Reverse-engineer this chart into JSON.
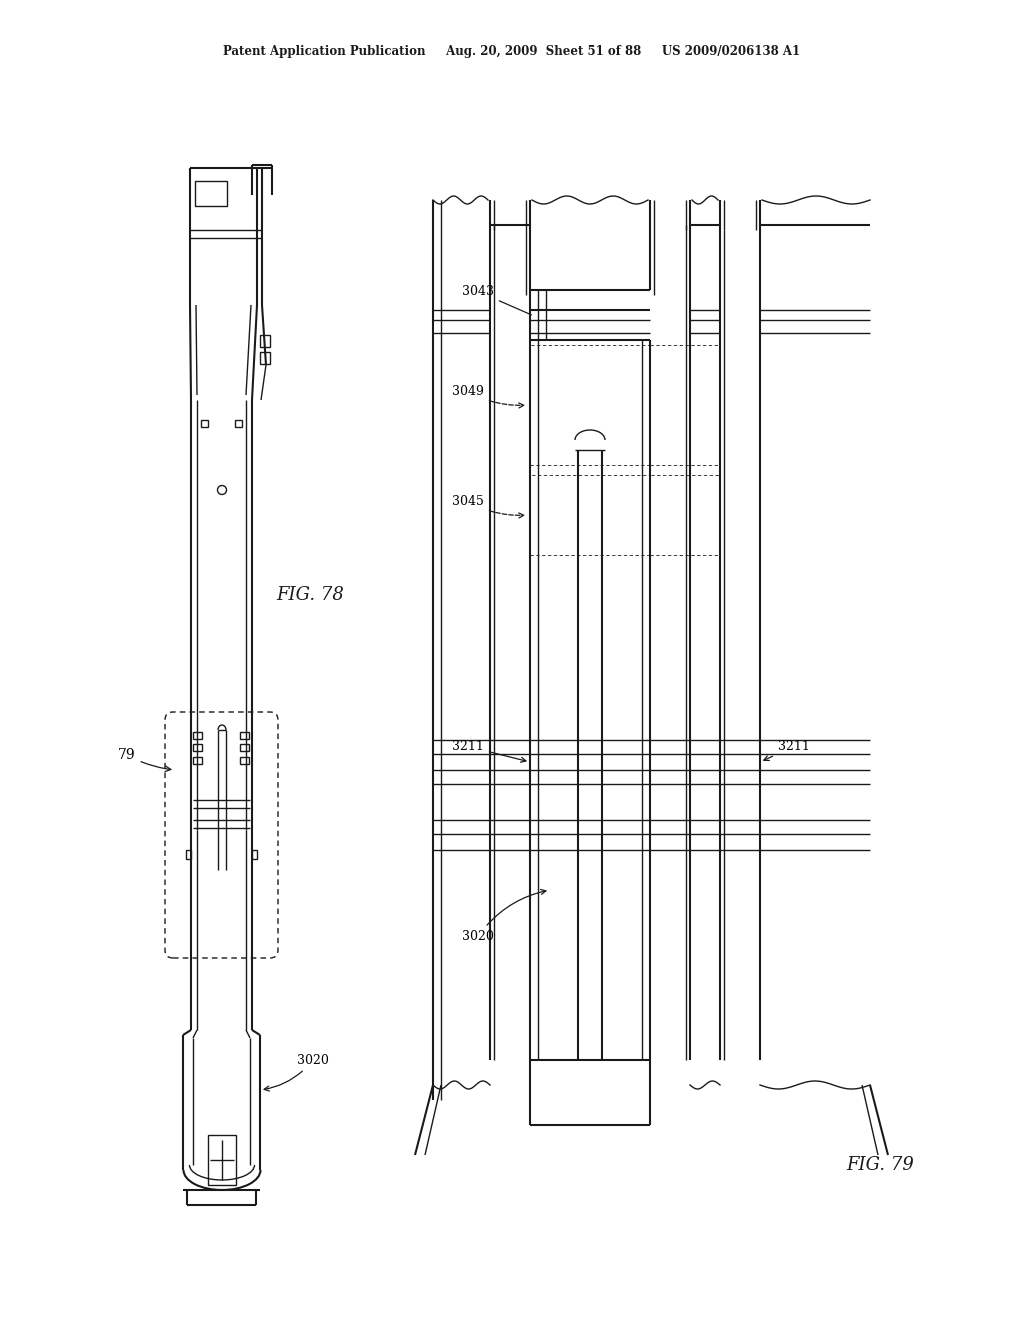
{
  "bg_color": "#ffffff",
  "line_color": "#1a1a1a",
  "header_text": "Patent Application Publication     Aug. 20, 2009  Sheet 51 of 88     US 2009/0206138 A1",
  "fig78_label": "FIG. 78",
  "fig79_label": "FIG. 79",
  "label_79": "79",
  "label_3020_left": "3020",
  "label_3043": "3043",
  "label_3049": "3049",
  "label_3045": "3045",
  "label_3211_left": "3211",
  "label_3211_right": "3211",
  "label_3020_right": "3020"
}
